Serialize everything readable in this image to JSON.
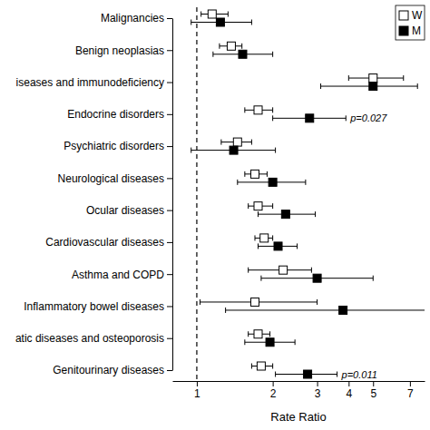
{
  "chart_data": {
    "type": "forest",
    "x_label": "Rate Ratio",
    "log": "x",
    "grid": false,
    "legend": "top-right",
    "orientation": "horizontal",
    "categories": [
      "Malignancies",
      "Benign neoplasias",
      "iseases and immunodeficiency",
      "Endocrine disorders",
      "Psychiatric disorders",
      "Neurological diseases",
      "Ocular diseases",
      "Cardiovascular diseases",
      "Asthma and COPD",
      "Inflammatory bowel diseases",
      "atic diseases and osteoporosis",
      "Genitourinary diseases"
    ],
    "xlim": [
      0.8,
      8
    ],
    "xticks": [
      1,
      2,
      3,
      4,
      5,
      7
    ],
    "reference_line": 1,
    "series": [
      {
        "name": "W",
        "color": "#000000",
        "marker": "open-square",
        "values": [
          1.15,
          1.37,
          5.0,
          1.75,
          1.45,
          1.7,
          1.75,
          1.85,
          2.2,
          1.7,
          1.75,
          1.8
        ],
        "lower": [
          1.04,
          1.23,
          4.0,
          1.55,
          1.25,
          1.55,
          1.6,
          1.7,
          1.6,
          1.03,
          1.6,
          1.65
        ],
        "upper": [
          1.33,
          1.51,
          6.6,
          2.0,
          1.65,
          1.9,
          2.0,
          2.0,
          2.85,
          3.0,
          1.95,
          2.0
        ]
      },
      {
        "name": "M",
        "color": "#000000",
        "marker": "square",
        "values": [
          1.24,
          1.52,
          5.0,
          2.8,
          1.4,
          2.0,
          2.25,
          2.1,
          3.0,
          3.8,
          1.95,
          2.75
        ],
        "lower": [
          0.95,
          1.16,
          3.1,
          2.0,
          0.95,
          1.45,
          1.75,
          1.75,
          1.8,
          1.3,
          1.55,
          2.05
        ],
        "upper": [
          1.65,
          2.0,
          7.5,
          3.9,
          2.05,
          2.7,
          2.95,
          2.5,
          5.0,
          10,
          2.45,
          3.6
        ]
      }
    ],
    "annotations": [
      {
        "text": "p=0.027",
        "category": "Endocrine disorders",
        "series": "M"
      },
      {
        "text": "p=0.011",
        "category": "Genitourinary diseases",
        "series": "M"
      }
    ]
  }
}
